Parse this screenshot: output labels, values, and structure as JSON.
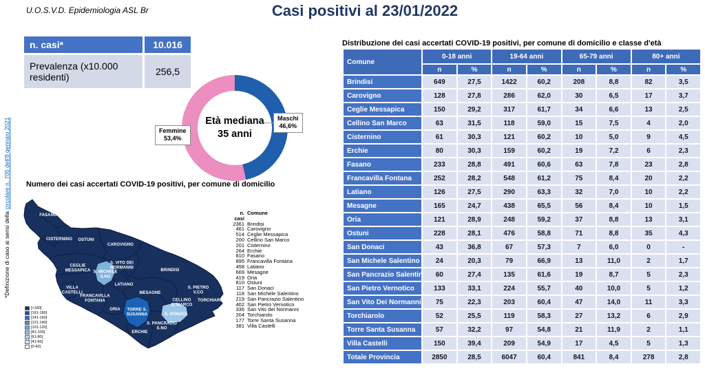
{
  "header": {
    "org": "U.O.S.V.D. Epidemiologia ASL Br",
    "title": "Casi positivi al 23/01/2022"
  },
  "side_note": {
    "prefix": "*Definizione di caso ai sensi della ",
    "link": "circolare n. 705 dell'8 gennaio 2021"
  },
  "summary": {
    "rows": [
      {
        "label": "n. casi*",
        "value": "10.016"
      },
      {
        "label": "Prevalenza (x10.000 residenti)",
        "value": "256,5"
      }
    ]
  },
  "donut": {
    "center_line1": "Età mediana",
    "center_line2": "35 anni",
    "slices": [
      {
        "label": "Maschi",
        "pct": "46,6%",
        "value": 46.6,
        "color": "#1f5fae"
      },
      {
        "label": "Femmine",
        "pct": "53,4%",
        "value": 53.4,
        "color": "#ec8ebf"
      }
    ]
  },
  "map": {
    "title": "Numero dei casi accertati COVID-19 positivi, per comune di domicilio",
    "base_color": "#17305e",
    "border_color": "#0a1c3e",
    "legend": {
      "bins": [
        "[>180]",
        "[161-180]",
        "[141-160]",
        "[121-140]",
        "[101-120]",
        "[81-100]",
        "[61-80]",
        "[41-60]",
        "[0-40]"
      ],
      "colors": [
        "#17305e",
        "#1f4e9f",
        "#2e6cc0",
        "#4d8ad0",
        "#74aad9",
        "#97c2e4",
        "#b7d5ed",
        "#d9e7f5",
        "#ffffff"
      ]
    },
    "regions": [
      {
        "label": "FASANO",
        "color": "#17305e"
      },
      {
        "label": "CISTERNINO",
        "color": "#17305e"
      },
      {
        "label": "OSTUNI",
        "color": "#17305e"
      },
      {
        "label": "CAROVIGNO",
        "color": "#17305e"
      },
      {
        "label": "S. VITO DEI\nNORMANNI",
        "color": "#17305e"
      },
      {
        "label": "BRINDISI",
        "color": "#17305e"
      },
      {
        "label": "CEGLIE\nMESSAPICA",
        "color": "#17305e"
      },
      {
        "label": "S. MICHELE\nS.NO",
        "color": "#7fb2dd"
      },
      {
        "label": "LATIANO",
        "color": "#17305e"
      },
      {
        "label": "VILLA\nCASTELLI",
        "color": "#17305e"
      },
      {
        "label": "FRANCAVILLA\nFONTANA",
        "color": "#17305e"
      },
      {
        "label": "MESAGNE",
        "color": "#17305e"
      },
      {
        "label": "S. PIETRO\nV.CO",
        "color": "#17305e"
      },
      {
        "label": "TORCHIAROLO",
        "color": "#17305e"
      },
      {
        "label": "CELLINO\nS. MARCO",
        "color": "#17305e"
      },
      {
        "label": "ORIA",
        "color": "#17305e"
      },
      {
        "label": "TORRE S.\nSUSANNA",
        "color": "#1b61b6"
      },
      {
        "label": "S. DONACI",
        "color": "#9cc7e9"
      },
      {
        "label": "S. PANCRAZIO\nS.NO",
        "color": "#17305e"
      },
      {
        "label": "ERCHIE",
        "color": "#17305e"
      }
    ],
    "case_list": {
      "col1": "n. casi",
      "col2": "Comune",
      "rows": [
        {
          "n": "2361",
          "comune": "Brindisi"
        },
        {
          "n": "461",
          "comune": "Carovigno"
        },
        {
          "n": "514",
          "comune": "Ceglie Messapica"
        },
        {
          "n": "200",
          "comune": "Cellino San Marco"
        },
        {
          "n": "201",
          "comune": "Cisternino"
        },
        {
          "n": "264",
          "comune": "Erchie"
        },
        {
          "n": "810",
          "comune": "Fasano"
        },
        {
          "n": "895",
          "comune": "Francavilla Fontana"
        },
        {
          "n": "458",
          "comune": "Latiano"
        },
        {
          "n": "669",
          "comune": "Mesagne"
        },
        {
          "n": "419",
          "comune": "Oria"
        },
        {
          "n": "810",
          "comune": "Ostuni"
        },
        {
          "n": "117",
          "comune": "San Donaci"
        },
        {
          "n": "118",
          "comune": "San Michele Salentino"
        },
        {
          "n": "219",
          "comune": "San Pancrazio Salentino"
        },
        {
          "n": "402",
          "comune": "San Pietro Vernotico"
        },
        {
          "n": "336",
          "comune": "San Vito dei Normanni"
        },
        {
          "n": "204",
          "comune": "Torchiarolo"
        },
        {
          "n": "177",
          "comune": "Torre Santa Susanna"
        },
        {
          "n": "381",
          "comune": "Villa Castelli"
        }
      ]
    }
  },
  "age_table": {
    "title": "Distribuzione dei casi accertati COVID-19 positivi, per comune di domicilio e classe d'età",
    "corner": "Comune",
    "groups": [
      "0-18 anni",
      "19-64 anni",
      "65-79 anni",
      "80+ anni"
    ],
    "sub": [
      "n",
      "%"
    ],
    "rows": [
      {
        "comune": "Brindisi",
        "cells": [
          "649",
          "27,5",
          "1422",
          "60,2",
          "208",
          "8,8",
          "82",
          "3,5"
        ]
      },
      {
        "comune": "Carovigno",
        "cells": [
          "128",
          "27,8",
          "286",
          "62,0",
          "30",
          "6,5",
          "17",
          "3,7"
        ]
      },
      {
        "comune": "Ceglie Messapica",
        "cells": [
          "150",
          "29,2",
          "317",
          "61,7",
          "34",
          "6,6",
          "13",
          "2,5"
        ]
      },
      {
        "comune": "Cellino San Marco",
        "cells": [
          "63",
          "31,5",
          "118",
          "59,0",
          "15",
          "7,5",
          "4",
          "2,0"
        ]
      },
      {
        "comune": "Cisternino",
        "cells": [
          "61",
          "30,3",
          "121",
          "60,2",
          "10",
          "5,0",
          "9",
          "4,5"
        ]
      },
      {
        "comune": "Erchie",
        "cells": [
          "80",
          "30,3",
          "159",
          "60,2",
          "19",
          "7,2",
          "6",
          "2,3"
        ]
      },
      {
        "comune": "Fasano",
        "cells": [
          "233",
          "28,8",
          "491",
          "60,6",
          "63",
          "7,8",
          "23",
          "2,8"
        ]
      },
      {
        "comune": "Francavilla Fontana",
        "cells": [
          "252",
          "28,2",
          "548",
          "61,2",
          "75",
          "8,4",
          "20",
          "2,2"
        ]
      },
      {
        "comune": "Latiano",
        "cells": [
          "126",
          "27,5",
          "290",
          "63,3",
          "32",
          "7,0",
          "10",
          "2,2"
        ]
      },
      {
        "comune": "Mesagne",
        "cells": [
          "165",
          "24,7",
          "438",
          "65,5",
          "56",
          "8,4",
          "10",
          "1,5"
        ]
      },
      {
        "comune": "Oria",
        "cells": [
          "121",
          "28,9",
          "248",
          "59,2",
          "37",
          "8,8",
          "13",
          "3,1"
        ]
      },
      {
        "comune": "Ostuni",
        "cells": [
          "228",
          "28,1",
          "476",
          "58,8",
          "71",
          "8,8",
          "35",
          "4,3"
        ]
      },
      {
        "comune": "San Donaci",
        "cells": [
          "43",
          "36,8",
          "67",
          "57,3",
          "7",
          "6,0",
          "0",
          "-"
        ]
      },
      {
        "comune": "San Michele Salentino",
        "cells": [
          "24",
          "20,3",
          "79",
          "66,9",
          "13",
          "11,0",
          "2",
          "1,7"
        ]
      },
      {
        "comune": "San Pancrazio Salentino",
        "cells": [
          "60",
          "27,4",
          "135",
          "61,6",
          "19",
          "8,7",
          "5",
          "2,3"
        ]
      },
      {
        "comune": "San Pietro Vernotico",
        "cells": [
          "133",
          "33,1",
          "224",
          "55,7",
          "40",
          "10,0",
          "5",
          "1,2"
        ]
      },
      {
        "comune": "San Vito Dei Normanni",
        "cells": [
          "75",
          "22,3",
          "203",
          "60,4",
          "47",
          "14,0",
          "11",
          "3,3"
        ]
      },
      {
        "comune": "Torchiarolo",
        "cells": [
          "52",
          "25,5",
          "119",
          "58,3",
          "27",
          "13,2",
          "6",
          "2,9"
        ]
      },
      {
        "comune": "Torre Santa Susanna",
        "cells": [
          "57",
          "32,2",
          "97",
          "54,8",
          "21",
          "11,9",
          "2",
          "1,1"
        ]
      },
      {
        "comune": "Villa Castelli",
        "cells": [
          "150",
          "39,4",
          "209",
          "54,9",
          "17",
          "4,5",
          "5",
          "1,3"
        ]
      },
      {
        "comune": "Totale Provincia",
        "cells": [
          "2850",
          "28,5",
          "6047",
          "60,4",
          "841",
          "8,4",
          "278",
          "2,8"
        ],
        "total": true
      }
    ]
  },
  "chart_data": [
    {
      "type": "pie",
      "title": "Età mediana 35 anni",
      "labels": [
        "Maschi",
        "Femmine"
      ],
      "values": [
        46.6,
        53.4
      ],
      "colors": [
        "#1f5fae",
        "#ec8ebf"
      ],
      "legend_position": "callouts"
    },
    {
      "type": "heatmap",
      "title": "Numero dei casi accertati COVID-19 positivi, per comune di domicilio",
      "categories": [
        "Brindisi",
        "Carovigno",
        "Ceglie Messapica",
        "Cellino San Marco",
        "Cisternino",
        "Erchie",
        "Fasano",
        "Francavilla Fontana",
        "Latiano",
        "Mesagne",
        "Oria",
        "Ostuni",
        "San Donaci",
        "San Michele Salentino",
        "San Pancrazio Salentino",
        "San Pietro Vernotico",
        "San Vito dei Normanni",
        "Torchiarolo",
        "Torre Santa Susanna",
        "Villa Castelli"
      ],
      "values": [
        2361,
        461,
        514,
        200,
        201,
        264,
        810,
        895,
        458,
        669,
        419,
        810,
        117,
        118,
        219,
        402,
        336,
        204,
        177,
        381
      ],
      "legend_bins": [
        "[>180]",
        "[161-180]",
        "[141-160]",
        "[121-140]",
        "[101-120]",
        "[81-100]",
        "[61-80]",
        "[41-60]",
        "[0-40]"
      ]
    }
  ]
}
